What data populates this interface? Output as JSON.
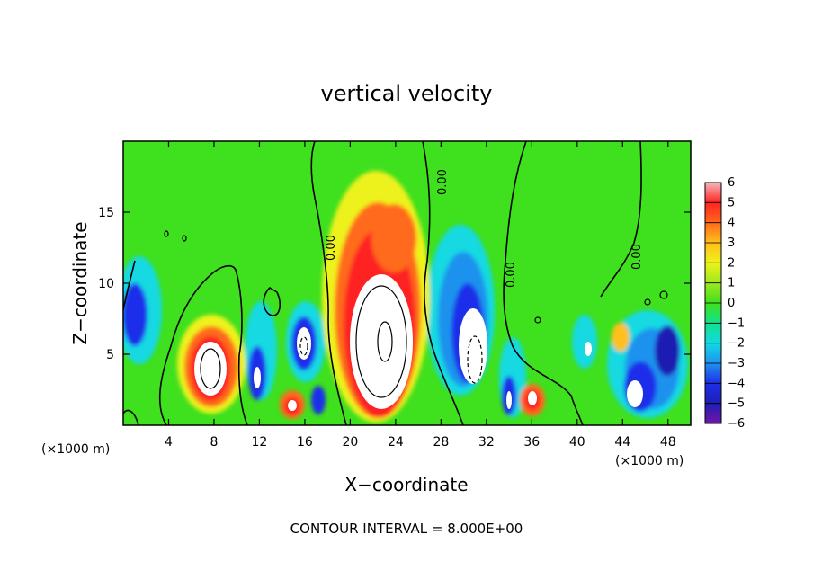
{
  "chart_data": {
    "type": "heatmap",
    "title": "vertical velocity",
    "xlabel": "X−coordinate",
    "ylabel": "Z−coordinate",
    "x_unit": "(×1000 m)",
    "y_unit": "(×1000 m)",
    "footnote": "CONTOUR INTERVAL = 8.000E+00",
    "xlim": [
      0,
      50
    ],
    "ylim": [
      0,
      20
    ],
    "x_ticks": [
      4,
      8,
      12,
      16,
      20,
      24,
      28,
      32,
      36,
      40,
      44,
      48
    ],
    "y_ticks": [
      5,
      10,
      15
    ],
    "x_tick_labels": [
      "4",
      "8",
      "12",
      "16",
      "20",
      "24",
      "28",
      "32",
      "36",
      "40",
      "44",
      "48"
    ],
    "y_tick_labels": [
      "5",
      "10",
      "15"
    ],
    "colorbar": {
      "min": -6,
      "max": 6,
      "labels": [
        "6",
        "5",
        "4",
        "3",
        "2",
        "1",
        "0",
        "−1",
        "−2",
        "−3",
        "−4",
        "−5",
        "−6"
      ],
      "colors": [
        "#f6b8bc",
        "#ff2222",
        "#ff6a1a",
        "#ffbf1a",
        "#eef21a",
        "#9ee81e",
        "#3fe01e",
        "#11e28c",
        "#12d9e2",
        "#1f92ee",
        "#1f2eea",
        "#1d1fb3",
        "#7414a8"
      ]
    },
    "contour_labels": [
      "0.00",
      "0.00",
      "0.00",
      "0.00"
    ],
    "features": [
      {
        "x": 7.5,
        "z": 4.5,
        "w": 9,
        "note": "updraft"
      },
      {
        "x": 23,
        "z": 6.5,
        "w": 10,
        "note": "main updraft"
      },
      {
        "x": 23.5,
        "z": 12.5,
        "w": 4.5,
        "note": "upper updraft"
      },
      {
        "x": 14.8,
        "z": 1.7,
        "w": 4.5,
        "note": "updraft"
      },
      {
        "x": 35.8,
        "z": 2,
        "w": 5,
        "note": "updraft"
      },
      {
        "x": 43.7,
        "z": 6,
        "w": 3,
        "note": "updraft"
      },
      {
        "x": 30.5,
        "z": 6,
        "w": -7,
        "note": "downdraft"
      },
      {
        "x": 17.5,
        "z": 6,
        "w": -5,
        "note": "downdraft"
      },
      {
        "x": 11.5,
        "z": 3.5,
        "w": -5,
        "note": "downdraft"
      },
      {
        "x": 34,
        "z": 2,
        "w": -5.5,
        "note": "downdraft"
      },
      {
        "x": 44.5,
        "z": 2.5,
        "w": -6,
        "note": "downdraft"
      },
      {
        "x": 47.5,
        "z": 5.5,
        "w": -6,
        "note": "downdraft"
      },
      {
        "x": 1,
        "z": 8.5,
        "w": -4.5,
        "note": "downdraft"
      }
    ]
  }
}
